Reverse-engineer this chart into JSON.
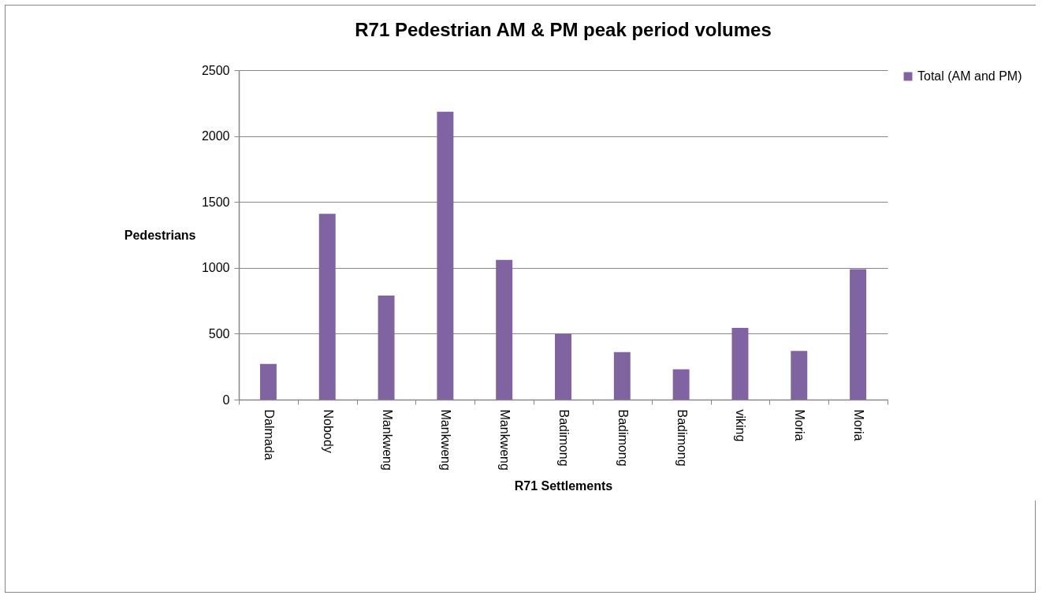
{
  "chart_data": {
    "type": "bar",
    "title": "R71 Pedestrian AM & PM peak period volumes",
    "xlabel": "R71 Settlements",
    "ylabel": "Pedestrians",
    "categories": [
      "Dalmada",
      "Nobody",
      "Mankweng",
      "Mankweng",
      "Mankweng",
      "Badimong",
      "Badimong",
      "Badimong",
      "viking",
      "Moria",
      "Moria"
    ],
    "series": [
      {
        "name": "Total (AM and PM)",
        "color": "#8064a2",
        "values": [
          270,
          1410,
          790,
          2185,
          1060,
          500,
          360,
          230,
          545,
          370,
          990
        ]
      }
    ],
    "ylim": [
      0,
      2500
    ],
    "yticks": [
      0,
      500,
      1000,
      1500,
      2000,
      2500
    ],
    "grid": "y",
    "legend": "right"
  }
}
